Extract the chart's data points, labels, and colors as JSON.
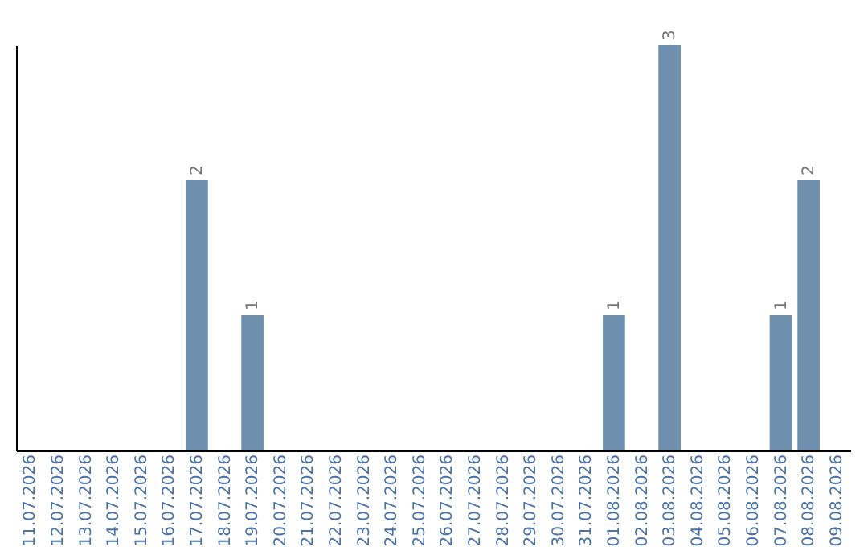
{
  "chart_data": {
    "type": "bar",
    "categories": [
      "11.07.2026",
      "12.07.2026",
      "13.07.2026",
      "14.07.2026",
      "15.07.2026",
      "16.07.2026",
      "17.07.2026",
      "18.07.2026",
      "19.07.2026",
      "20.07.2026",
      "21.07.2026",
      "22.07.2026",
      "23.07.2026",
      "24.07.2026",
      "25.07.2026",
      "26.07.2026",
      "27.07.2026",
      "28.07.2026",
      "29.07.2026",
      "30.07.2026",
      "31.07.2026",
      "01.08.2026",
      "02.08.2026",
      "03.08.2026",
      "04.08.2026",
      "05.08.2026",
      "06.08.2026",
      "07.08.2026",
      "08.08.2026",
      "09.08.2026"
    ],
    "values": [
      0,
      0,
      0,
      0,
      0,
      0,
      2,
      0,
      1,
      0,
      0,
      0,
      0,
      0,
      0,
      0,
      0,
      0,
      0,
      0,
      0,
      1,
      0,
      3,
      0,
      0,
      0,
      1,
      2,
      0
    ],
    "value_labels": [
      null,
      null,
      null,
      null,
      null,
      null,
      "2",
      null,
      "1",
      null,
      null,
      null,
      null,
      null,
      null,
      null,
      null,
      null,
      null,
      null,
      null,
      "1",
      null,
      "3",
      null,
      null,
      null,
      "1",
      "2",
      null
    ],
    "color": "#6e8fad",
    "grid": false
  }
}
